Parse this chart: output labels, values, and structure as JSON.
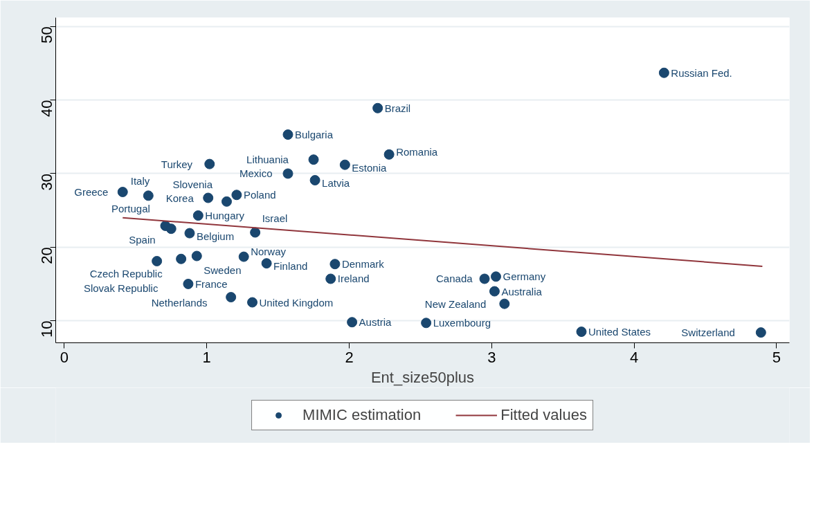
{
  "chart_data": {
    "type": "scatter",
    "xlabel": "Ent_size50plus",
    "xlim": [
      -0.06,
      5.09
    ],
    "ylim": [
      7.0,
      51.2
    ],
    "xticks": [
      0,
      1,
      2,
      3,
      4,
      5
    ],
    "yticks": [
      10,
      20,
      30,
      40,
      50
    ],
    "grid": "y",
    "legend": "bottom",
    "series": [
      {
        "name": "MIMIC estimation",
        "color": "#1a476f",
        "marker": "circle",
        "x": [
          4.21,
          2.2,
          1.57,
          2.28,
          1.75,
          1.97,
          1.02,
          1.57,
          1.76,
          0.41,
          0.59,
          1.21,
          1.01,
          1.14,
          0.94,
          0.71,
          0.75,
          0.88,
          1.34,
          0.93,
          1.26,
          0.82,
          0.65,
          1.42,
          1.9,
          1.87,
          0.87,
          1.17,
          1.32,
          2.02,
          2.54,
          3.63,
          4.89,
          2.95,
          3.03,
          3.02,
          3.09
        ],
        "values": [
          43.7,
          38.9,
          35.3,
          32.6,
          31.9,
          31.2,
          31.3,
          30.0,
          29.1,
          27.5,
          27.0,
          27.1,
          26.7,
          26.2,
          24.3,
          22.9,
          22.5,
          21.9,
          22.0,
          18.8,
          18.7,
          18.4,
          18.1,
          17.8,
          17.7,
          15.7,
          15.0,
          13.2,
          12.5,
          9.8,
          9.7,
          8.5,
          8.4,
          15.7,
          16.0,
          14.0,
          12.3
        ]
      },
      {
        "name": "Fitted values",
        "color": "#90353b",
        "type": "line",
        "line_style": "solid",
        "x": [
          0.41,
          4.9
        ],
        "values": [
          24.0,
          17.4
        ]
      }
    ],
    "annotations": [
      {
        "text": "Russian Fed.",
        "x": 4.21,
        "y": 43.7
      },
      {
        "text": "Brazil",
        "x": 2.2,
        "y": 38.9
      },
      {
        "text": "Bulgaria",
        "x": 1.57,
        "y": 35.3
      },
      {
        "text": "Romania",
        "x": 2.28,
        "y": 32.6
      },
      {
        "text": "Lithuania",
        "x": 1.75,
        "y": 31.9
      },
      {
        "text": "Estonia",
        "x": 1.97,
        "y": 31.2
      },
      {
        "text": "Turkey",
        "x": 1.02,
        "y": 31.3
      },
      {
        "text": "Mexico",
        "x": 1.57,
        "y": 30.0
      },
      {
        "text": "Latvia",
        "x": 1.76,
        "y": 29.1
      },
      {
        "text": "Greece",
        "x": 0.41,
        "y": 27.5
      },
      {
        "text": "Italy",
        "x": 0.59,
        "y": 27.0
      },
      {
        "text": "Poland",
        "x": 1.21,
        "y": 27.1
      },
      {
        "text": "Korea",
        "x": 1.01,
        "y": 26.7
      },
      {
        "text": "Slovenia",
        "x": 1.14,
        "y": 26.2
      },
      {
        "text": "Hungary",
        "x": 0.94,
        "y": 24.3
      },
      {
        "text": "Portugal",
        "x": 0.71,
        "y": 22.9
      },
      {
        "text": "Spain",
        "x": 0.75,
        "y": 22.5
      },
      {
        "text": "Belgium",
        "x": 0.88,
        "y": 21.9
      },
      {
        "text": "Israel",
        "x": 1.34,
        "y": 22.0
      },
      {
        "text": "Sweden",
        "x": 0.93,
        "y": 18.8
      },
      {
        "text": "Norway",
        "x": 1.26,
        "y": 18.7
      },
      {
        "text": "Czech Republic",
        "x": 0.82,
        "y": 18.4
      },
      {
        "text": "Slovak Republic",
        "x": 0.65,
        "y": 18.1
      },
      {
        "text": "Finland",
        "x": 1.42,
        "y": 17.8
      },
      {
        "text": "Denmark",
        "x": 1.9,
        "y": 17.7
      },
      {
        "text": "Ireland",
        "x": 1.87,
        "y": 15.7
      },
      {
        "text": "France",
        "x": 0.87,
        "y": 15.0
      },
      {
        "text": "Netherlands",
        "x": 1.17,
        "y": 13.2
      },
      {
        "text": "United Kingdom",
        "x": 1.32,
        "y": 12.5
      },
      {
        "text": "Austria",
        "x": 2.02,
        "y": 9.8
      },
      {
        "text": "Luxembourg",
        "x": 2.54,
        "y": 9.7
      },
      {
        "text": "United States",
        "x": 3.63,
        "y": 8.5
      },
      {
        "text": "Switzerland",
        "x": 4.89,
        "y": 8.4
      },
      {
        "text": "Canada",
        "x": 2.95,
        "y": 15.7
      },
      {
        "text": "Germany",
        "x": 3.03,
        "y": 16.0
      },
      {
        "text": "Australia",
        "x": 3.02,
        "y": 14.0
      },
      {
        "text": "New Zealand",
        "x": 3.09,
        "y": 12.3
      }
    ]
  }
}
